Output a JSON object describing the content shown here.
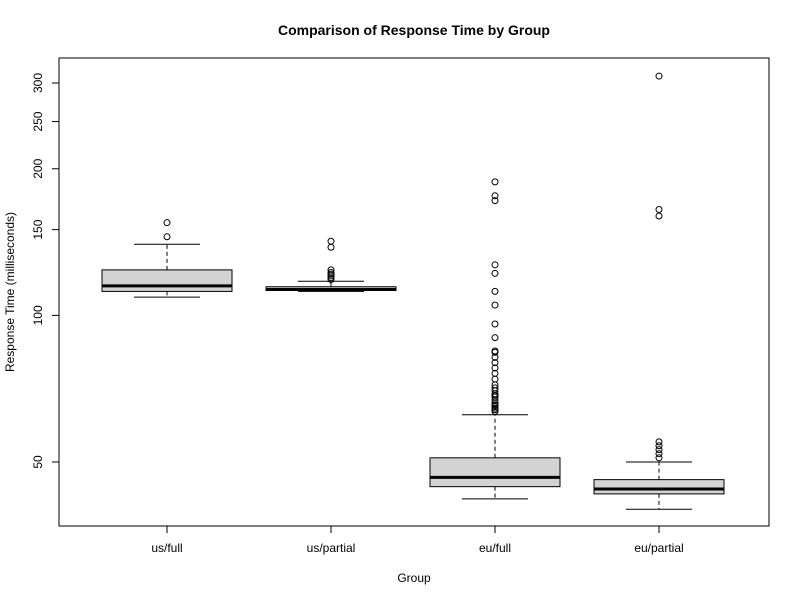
{
  "chart_data": {
    "type": "boxplot",
    "title": "Comparison of Response Time by Group",
    "xlabel": "Group",
    "ylabel": "Response Time (milliseconds)",
    "y_scale": "log",
    "ylim": [
      38,
      330
    ],
    "y_ticks": [
      50,
      100,
      150,
      200,
      250,
      300
    ],
    "grid": false,
    "box_fill": "#d3d3d3",
    "line_color": "#000000",
    "categories": [
      "us/full",
      "us/partial",
      "eu/full",
      "eu/partial"
    ],
    "boxes": [
      {
        "name": "us/full",
        "whisker_low": 109,
        "q1": 112,
        "median": 115,
        "q3": 124,
        "whisker_high": 140,
        "outliers": [
          145,
          155
        ]
      },
      {
        "name": "us/partial",
        "whisker_low": 112,
        "q1": 112.5,
        "median": 113,
        "q3": 114.5,
        "whisker_high": 117.5,
        "outliers": [
          118.5,
          119.5,
          120.5,
          121.5,
          122.5,
          124,
          138,
          142
        ]
      },
      {
        "name": "eu/full",
        "whisker_low": 42,
        "q1": 44.5,
        "median": 46.5,
        "q3": 51,
        "whisker_high": 62.5,
        "outliers": [
          63.5,
          64,
          64.5,
          65,
          65.5,
          66,
          67,
          68,
          68.5,
          69,
          70,
          71,
          72,
          74,
          76,
          78,
          80,
          82,
          84,
          84.5,
          90,
          96,
          105,
          112,
          122,
          127,
          172,
          176,
          188
        ]
      },
      {
        "name": "eu/partial",
        "whisker_low": 40,
        "q1": 43,
        "median": 44,
        "q3": 46,
        "whisker_high": 50,
        "outliers": [
          51,
          52,
          53,
          54,
          55,
          160,
          165,
          310
        ]
      }
    ]
  }
}
